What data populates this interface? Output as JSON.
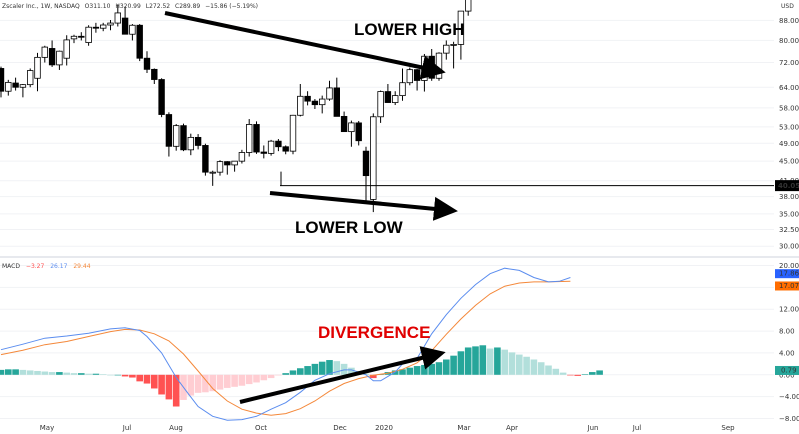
{
  "header": {
    "symbol": "Zscaler Inc., 1W, NASDAQ",
    "open": "O311.10",
    "high": "H320.99",
    "low": "L272.52",
    "close": "C289.89",
    "change": "−15.86 (−5.19%)",
    "currency": "USD"
  },
  "macd_header": {
    "label": "MACD",
    "hist": "−3.27",
    "macd": "26.17",
    "signal": "29.44"
  },
  "annotations": {
    "lower_high": "LOWER HIGH",
    "lower_low": "LOWER LOW",
    "divergence": "DIVERGENCE"
  },
  "price_marker": "40.05",
  "macd_markers": {
    "macd": "17.86",
    "signal": "17.07",
    "hist": "0.79"
  },
  "colors": {
    "up_body": "#ffffff",
    "down_body": "#000000",
    "macd_line": "#5b8def",
    "signal_line": "#f4883a",
    "hist_pos_strong": "#26a69a",
    "hist_pos_weak": "#b2dfdb",
    "hist_neg_strong": "#ff5252",
    "hist_neg_weak": "#ffcdd2",
    "divergence_text": "#e00000",
    "marker_bg": "#000000",
    "macd_marker_bg": "#2962ff",
    "signal_marker_bg": "#ff6d00",
    "hist_marker_bg": "#26a69a"
  },
  "chart_data": [
    {
      "type": "candlestick",
      "yscale": "log",
      "ylim": [
        28.5,
        97
      ],
      "ytick_labels": [
        "30.00",
        "32.50",
        "35.00",
        "38.00",
        "41.00",
        "45.00",
        "49.00",
        "53.00",
        "58.00",
        "64.00",
        "72.00",
        "80.00",
        "88.00"
      ],
      "xtick_labels": [
        "May",
        "Jul",
        "Aug",
        "Oct",
        "Dec",
        "2020",
        "Mar",
        "Apr",
        "Jun",
        "Jul",
        "Sep"
      ],
      "horizontal_line": 40.05,
      "candles": [
        [
          70,
          70.6,
          61,
          62.8
        ],
        [
          62.8,
          66.3,
          61.5,
          65.5
        ],
        [
          65.3,
          67,
          63,
          64
        ],
        [
          64,
          65,
          61,
          64.8
        ],
        [
          64.8,
          70,
          64,
          69.3
        ],
        [
          66.8,
          75.4,
          62.8,
          73.8
        ],
        [
          73.8,
          78,
          72,
          77.5
        ],
        [
          77,
          80,
          70.5,
          71.2
        ],
        [
          71.2,
          76.2,
          69.5,
          76
        ],
        [
          73.5,
          82,
          71,
          80.2
        ],
        [
          80.6,
          82.2,
          79,
          81.6
        ],
        [
          81.6,
          83.2,
          80,
          81.3
        ],
        [
          79.2,
          86,
          78,
          85.2
        ],
        [
          85.2,
          87,
          83,
          84.8
        ],
        [
          84.8,
          87,
          83.6,
          86.1
        ],
        [
          86.1,
          88.2,
          84,
          86.9
        ],
        [
          86.9,
          95,
          85.5,
          91.2
        ],
        [
          89,
          94,
          83,
          82.4
        ],
        [
          82.4,
          86.5,
          80,
          86
        ],
        [
          86,
          86.5,
          72.5,
          73.5
        ],
        [
          73.5,
          76,
          68.5,
          69.7
        ],
        [
          69.7,
          70,
          65,
          66.4
        ],
        [
          66.4,
          66.8,
          55.5,
          56.2
        ],
        [
          56.2,
          56.8,
          46,
          48.3
        ],
        [
          48.3,
          53.7,
          47.3,
          53.3
        ],
        [
          53.3,
          53.8,
          47.2,
          47.5
        ],
        [
          47.5,
          51.3,
          46.3,
          50.4
        ],
        [
          50.4,
          51.2,
          47.6,
          48.5
        ],
        [
          48.5,
          48.9,
          42,
          42.7
        ],
        [
          42.7,
          43,
          40,
          42.7
        ],
        [
          42.7,
          45.2,
          42,
          44.9
        ],
        [
          44.9,
          45,
          42.2,
          44.2
        ],
        [
          44.2,
          45,
          42.8,
          45
        ],
        [
          45,
          47.5,
          44.5,
          46.9
        ],
        [
          46.9,
          55,
          46,
          53.6
        ],
        [
          53.6,
          54.4,
          46.6,
          47
        ],
        [
          47,
          48.5,
          45.6,
          46.7
        ],
        [
          46.7,
          49.8,
          46.2,
          49.5
        ],
        [
          49.5,
          50,
          47.2,
          48.2
        ],
        [
          48.2,
          48.5,
          46.5,
          47.2
        ],
        [
          47.2,
          56.1,
          46.5,
          56
        ],
        [
          56,
          65,
          55.7,
          61.3
        ],
        [
          61.3,
          62.8,
          58.7,
          59.9
        ],
        [
          59.9,
          60.5,
          57.7,
          58.9
        ],
        [
          58.9,
          61.5,
          56.5,
          60.5
        ],
        [
          60.5,
          66,
          60,
          63.8
        ],
        [
          63.8,
          67,
          56,
          55.7
        ],
        [
          55.7,
          57,
          52,
          51.8
        ],
        [
          51.8,
          54.6,
          48.2,
          54
        ],
        [
          54,
          54.5,
          48.5,
          49.6
        ],
        [
          47.2,
          48.2,
          37,
          42
        ],
        [
          37.5,
          56.5,
          35.3,
          55.6
        ],
        [
          55.6,
          63,
          54,
          62.7
        ],
        [
          62.7,
          65,
          59.5,
          59.5
        ],
        [
          59.5,
          62.8,
          58.8,
          61.5
        ],
        [
          61.5,
          70,
          60,
          65.4
        ],
        [
          65.4,
          70.3,
          64.6,
          69.6
        ],
        [
          69.6,
          69.8,
          63,
          66.1
        ],
        [
          66.1,
          75,
          62.7,
          74.2
        ],
        [
          74.2,
          76.8,
          66,
          66.8
        ],
        [
          66.8,
          75.6,
          66,
          75.3
        ],
        [
          75.3,
          80,
          73,
          78.2
        ],
        [
          78.2,
          79.5,
          70,
          78.5
        ],
        [
          78.5,
          92,
          73,
          92
        ],
        [
          92,
          120,
          90,
          110
        ]
      ]
    },
    {
      "type": "macd",
      "ylim": [
        -9,
        21
      ],
      "ytick_labels": [
        "20.00",
        "16.00",
        "12.00",
        "8.00",
        "4.00",
        "0.00",
        "−4.00",
        "−8.00"
      ],
      "macd": [
        [
          0,
          4.6
        ],
        [
          3,
          5.6
        ],
        [
          6,
          6.7
        ],
        [
          9,
          7.1
        ],
        [
          12,
          7.6
        ],
        [
          15,
          8.4
        ],
        [
          17,
          8.6
        ],
        [
          19,
          8.1
        ],
        [
          20,
          7.0
        ],
        [
          22,
          4.0
        ],
        [
          24,
          -0.5
        ],
        [
          25.5,
          -3.2
        ],
        [
          27,
          -5.8
        ],
        [
          29,
          -7.6
        ],
        [
          31,
          -8.3
        ],
        [
          33,
          -8.2
        ],
        [
          35,
          -7.6
        ],
        [
          37,
          -6.3
        ],
        [
          39,
          -5.1
        ],
        [
          41,
          -3.2
        ],
        [
          43,
          -1.0
        ],
        [
          45,
          0.2
        ],
        [
          47,
          0.9
        ],
        [
          48,
          0.9
        ],
        [
          49,
          0.5
        ],
        [
          50,
          0.0
        ],
        [
          51,
          -1.1
        ],
        [
          52,
          -1.1
        ],
        [
          54,
          0.5
        ],
        [
          55,
          2.0
        ],
        [
          57,
          3.0
        ],
        [
          59,
          7.5
        ],
        [
          61,
          11.0
        ],
        [
          63,
          14.0
        ],
        [
          65,
          16.5
        ],
        [
          67,
          18.5
        ],
        [
          69,
          19.5
        ],
        [
          71,
          19.1
        ],
        [
          73,
          17.8
        ],
        [
          75,
          17.0
        ],
        [
          76.5,
          17.1
        ],
        [
          78,
          17.8
        ]
      ],
      "signal": [
        [
          0,
          3.7
        ],
        [
          3,
          4.5
        ],
        [
          6,
          5.5
        ],
        [
          9,
          6.1
        ],
        [
          12,
          7.0
        ],
        [
          15,
          7.9
        ],
        [
          17,
          8.3
        ],
        [
          19,
          8.2
        ],
        [
          21,
          7.5
        ],
        [
          23,
          6.2
        ],
        [
          25,
          3.8
        ],
        [
          27,
          0.7
        ],
        [
          29,
          -2.5
        ],
        [
          31,
          -4.8
        ],
        [
          33,
          -6.3
        ],
        [
          35,
          -7.0
        ],
        [
          37,
          -7.4
        ],
        [
          39,
          -7.1
        ],
        [
          41,
          -6.2
        ],
        [
          43,
          -4.8
        ],
        [
          45,
          -3.0
        ],
        [
          47,
          -1.6
        ],
        [
          49,
          -0.7
        ],
        [
          51,
          -0.1
        ],
        [
          53,
          0.3
        ],
        [
          55,
          1.0
        ],
        [
          57,
          2.2
        ],
        [
          59,
          4.4
        ],
        [
          61,
          7.4
        ],
        [
          63,
          10.2
        ],
        [
          65,
          12.7
        ],
        [
          67,
          14.8
        ],
        [
          69,
          16.2
        ],
        [
          71,
          16.8
        ],
        [
          73,
          17.0
        ],
        [
          75,
          17.0
        ],
        [
          78,
          17.1
        ]
      ],
      "histogram": [
        0.9,
        1.0,
        1.0,
        0.9,
        0.8,
        0.7,
        0.6,
        0.5,
        0.5,
        0.4,
        0.3,
        0.3,
        0.2,
        0.2,
        0.1,
        0.0,
        0.0,
        -0.3,
        -0.5,
        -1.2,
        -1.6,
        -2.5,
        -3.6,
        -4.5,
        -5.8,
        -4.6,
        -3.8,
        -3.3,
        -3.2,
        -3.0,
        -2.7,
        -2.4,
        -2.2,
        -2.0,
        -1.7,
        -1.4,
        -1.0,
        -0.6,
        -0.1,
        0.3,
        0.8,
        1.2,
        1.6,
        2.0,
        2.4,
        2.7,
        2.5,
        2.0,
        1.3,
        0.7,
        0.2,
        -0.6,
        0.1,
        0.5,
        0.8,
        1.0,
        1.3,
        1.6,
        1.8,
        2.0,
        2.3,
        2.8,
        3.5,
        4.3,
        5.0,
        5.2,
        5.4,
        4.8,
        5.0,
        4.6,
        4.1,
        3.7,
        3.3,
        2.8,
        2.3,
        1.7,
        1.1,
        0.4,
        -0.1,
        -0.2,
        0.1,
        0.5,
        0.8
      ]
    }
  ]
}
